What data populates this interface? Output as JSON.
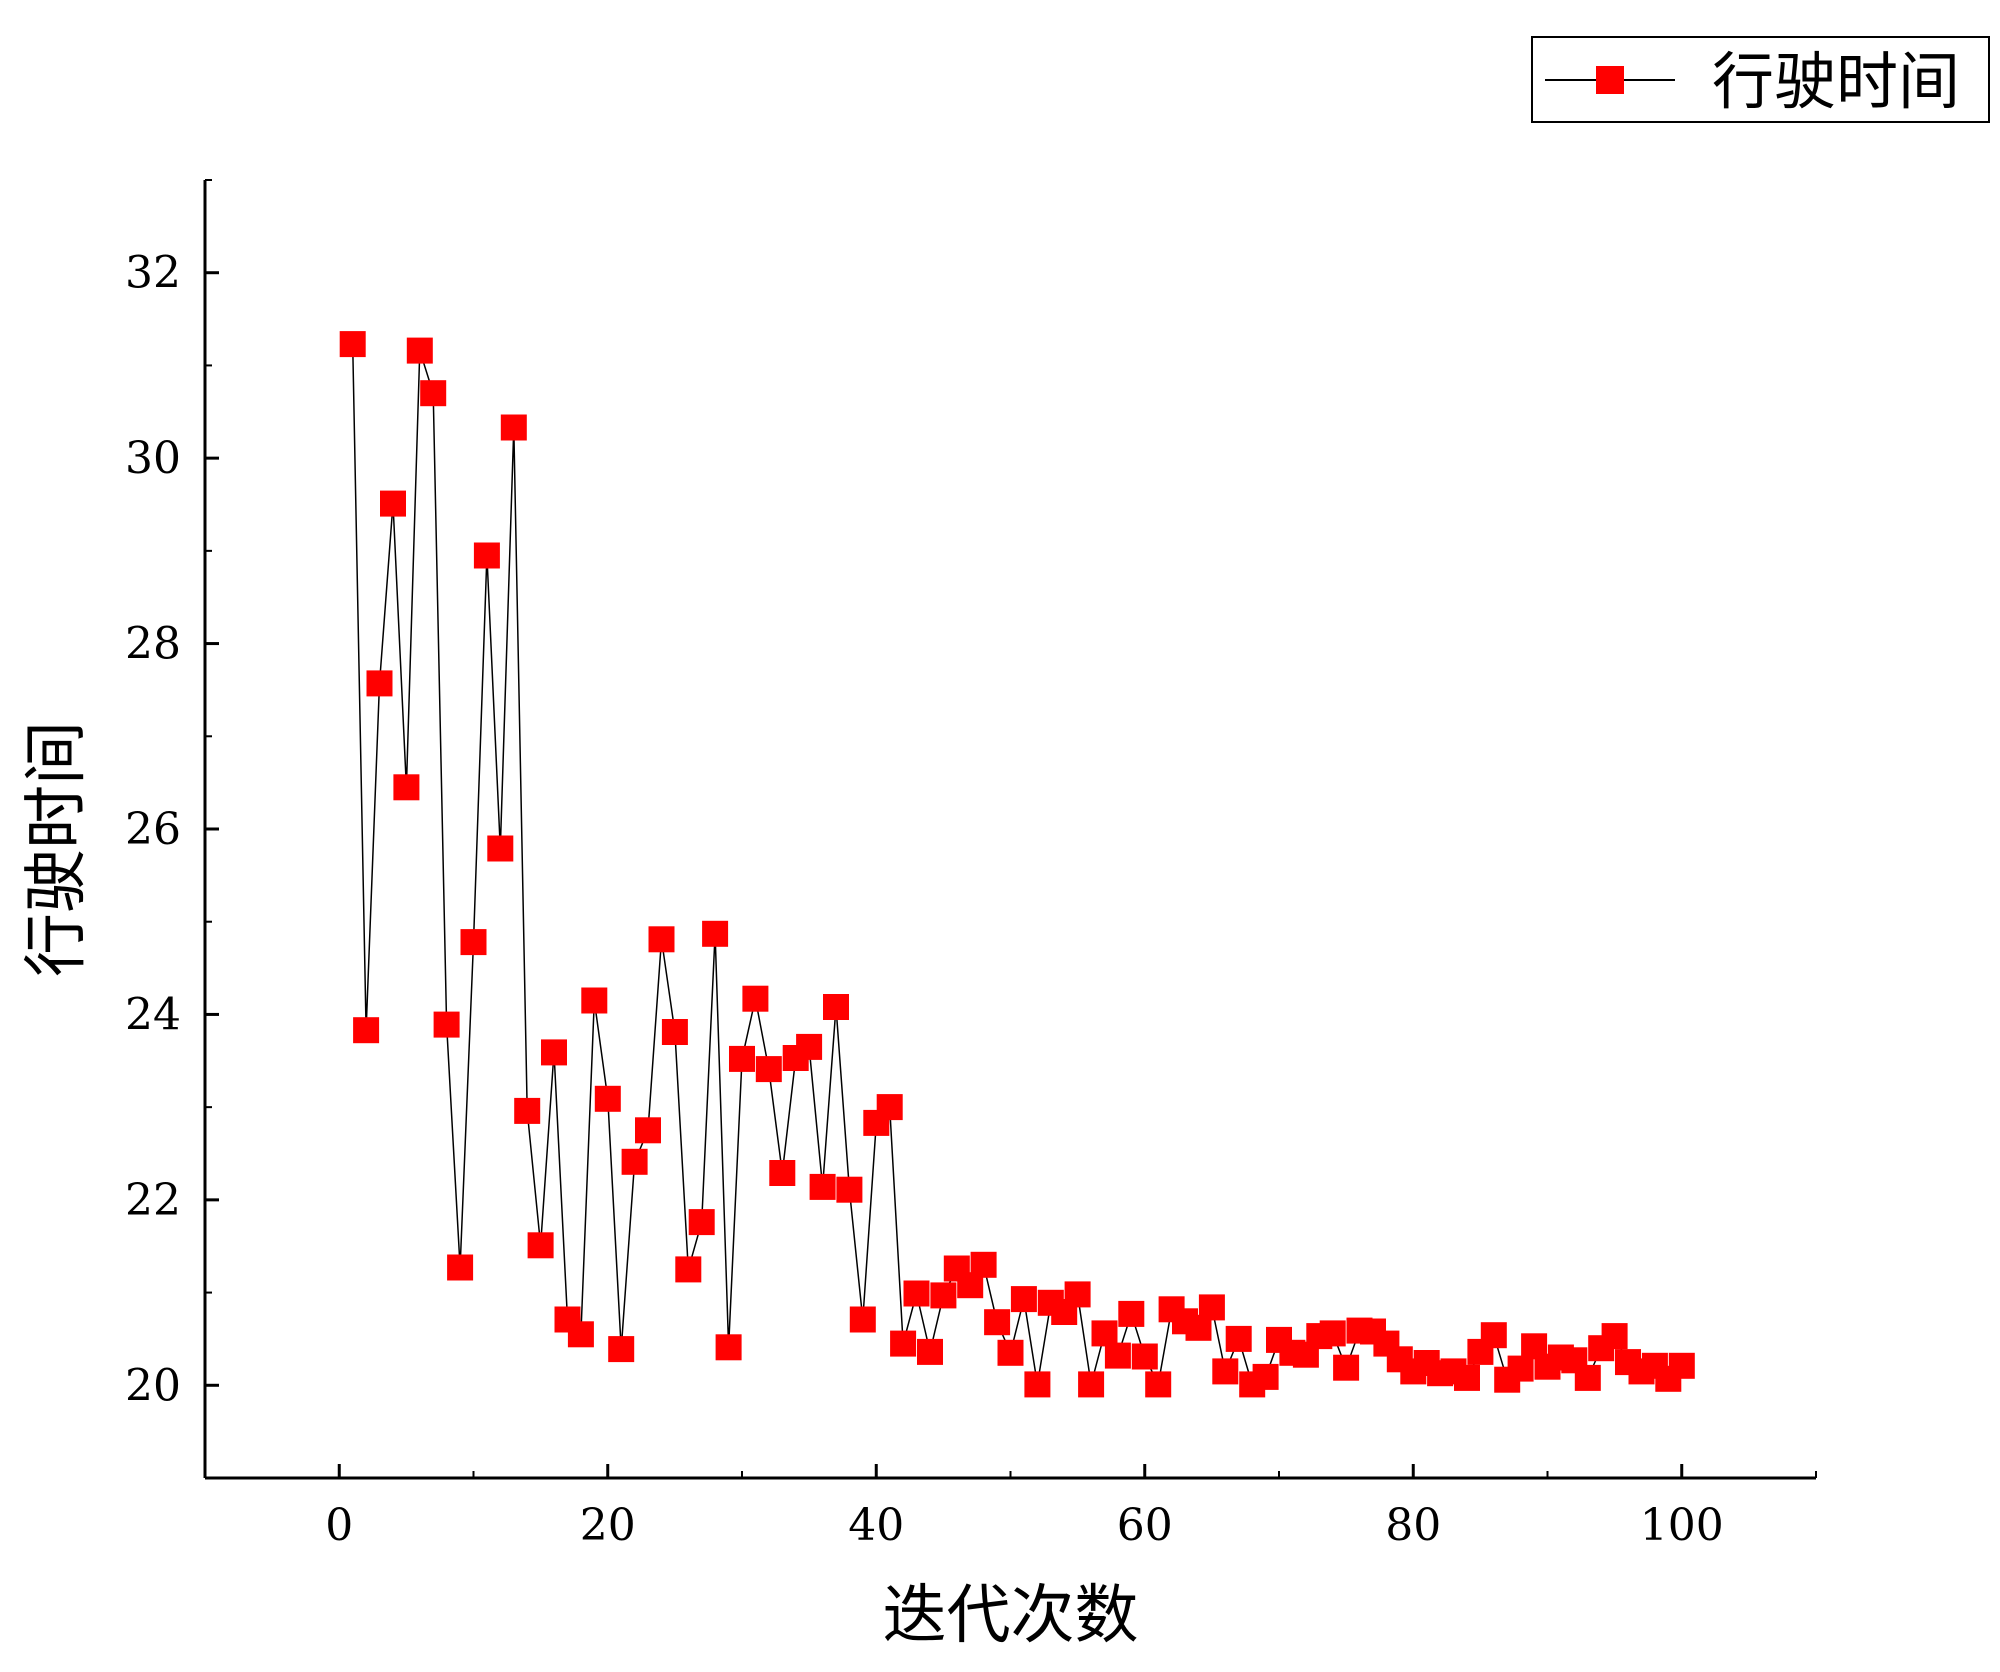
{
  "chart_data": {
    "type": "line",
    "title": "",
    "xlabel": "迭代次数",
    "ylabel": "行驶时间",
    "xlim": [
      -10,
      110
    ],
    "ylim": [
      19,
      33
    ],
    "x_ticks": [
      0,
      20,
      40,
      60,
      80,
      100
    ],
    "y_ticks": [
      20,
      22,
      24,
      26,
      28,
      30,
      32
    ],
    "grid": false,
    "legend_position": "top-right",
    "colors": {
      "marker": "#ff0000",
      "line": "#000000"
    },
    "series": [
      {
        "name": "行驶时间",
        "marker": "square",
        "x": [
          1,
          2,
          3,
          4,
          5,
          6,
          7,
          8,
          9,
          10,
          11,
          12,
          13,
          14,
          15,
          16,
          17,
          18,
          19,
          20,
          21,
          22,
          23,
          24,
          25,
          26,
          27,
          28,
          29,
          30,
          31,
          32,
          33,
          34,
          35,
          36,
          37,
          38,
          39,
          40,
          41,
          42,
          43,
          44,
          45,
          46,
          47,
          48,
          49,
          50,
          51,
          52,
          53,
          54,
          55,
          56,
          57,
          58,
          59,
          60,
          61,
          62,
          63,
          64,
          65,
          66,
          67,
          68,
          69,
          70,
          71,
          72,
          73,
          74,
          75,
          76,
          77,
          78,
          79,
          80,
          81,
          82,
          83,
          84,
          85,
          86,
          87,
          88,
          89,
          90,
          91,
          92,
          93,
          94,
          95,
          96,
          97,
          98,
          99,
          100
        ],
        "y": [
          31.23,
          23.83,
          27.57,
          29.51,
          26.45,
          31.16,
          30.7,
          23.89,
          21.27,
          24.78,
          28.95,
          25.79,
          30.33,
          22.96,
          21.51,
          23.59,
          20.71,
          20.55,
          24.15,
          23.09,
          20.39,
          22.41,
          22.75,
          24.81,
          23.81,
          21.25,
          21.76,
          24.87,
          20.41,
          23.52,
          24.17,
          23.41,
          22.29,
          23.53,
          23.65,
          22.14,
          24.08,
          22.11,
          20.71,
          22.83,
          23.0,
          20.45,
          20.99,
          20.36,
          20.97,
          21.26,
          21.08,
          21.3,
          20.68,
          20.35,
          20.93,
          20.01,
          20.89,
          20.79,
          20.98,
          20.01,
          20.56,
          20.32,
          20.77,
          20.31,
          20.01,
          20.82,
          20.69,
          20.62,
          20.84,
          20.15,
          20.5,
          20.01,
          20.09,
          20.49,
          20.35,
          20.33,
          20.53,
          20.56,
          20.19,
          20.59,
          20.58,
          20.45,
          20.28,
          20.15,
          20.24,
          20.13,
          20.15,
          20.08,
          20.36,
          20.54,
          20.06,
          20.18,
          20.42,
          20.2,
          20.3,
          20.27,
          20.08,
          20.4,
          20.53,
          20.25,
          20.15,
          20.21,
          20.07,
          20.21
        ]
      }
    ]
  }
}
